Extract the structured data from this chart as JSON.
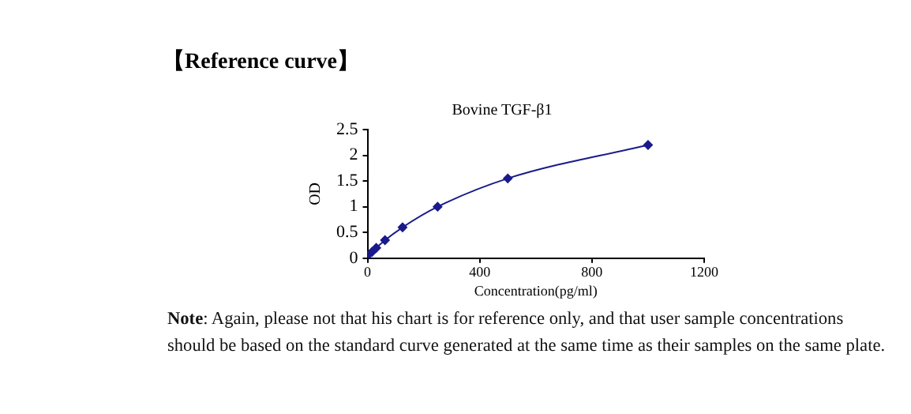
{
  "chart_data": {
    "type": "line",
    "title": "【Reference curve】",
    "subtitle": "Bovine TGF-β1",
    "xlabel": "Concentration(pg/ml)",
    "ylabel": "OD",
    "x": [
      0,
      15.6,
      31.25,
      62.5,
      125,
      250,
      500,
      1000
    ],
    "series": [
      {
        "color": "#1a1a8c",
        "values": [
          0.05,
          0.12,
          0.2,
          0.35,
          0.6,
          1.0,
          1.55,
          2.2
        ]
      }
    ],
    "xlim": [
      0,
      1200
    ],
    "xticks": [
      0,
      400,
      800,
      1200
    ],
    "ylim": [
      0,
      2.5
    ],
    "yticks": [
      0,
      0.5,
      1,
      1.5,
      2,
      2.5
    ],
    "grid": false,
    "marker": "diamond",
    "line_style": "solid",
    "annotations": [
      "Note: Again, please not that his chart is for reference only, and that user sample concentrations should be based on the standard curve generated at the same time as their samples on the same plate."
    ]
  }
}
